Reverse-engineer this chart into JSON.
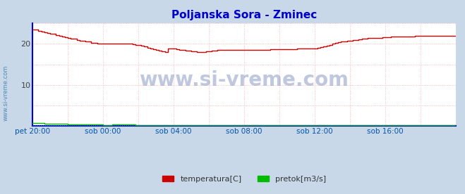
{
  "title": "Poljanska Sora - Zminec",
  "title_color": "#0000cc",
  "background_color": "#c8d8e8",
  "plot_background": "#ffffff",
  "xlim": [
    0,
    288
  ],
  "ylim": [
    0,
    25
  ],
  "yticks": [
    10,
    20
  ],
  "xtick_labels": [
    "pet 20:00",
    "sob 00:00",
    "sob 04:00",
    "sob 08:00",
    "sob 12:00",
    "sob 16:00"
  ],
  "xtick_positions": [
    0,
    48,
    96,
    144,
    192,
    240
  ],
  "grid_color": "#ffaaaa",
  "grid_color2": "#aaaacc",
  "watermark_text": "www.si-vreme.com",
  "watermark_color": "#1a3a8a",
  "ylabel_text": "www.si-vreme.com",
  "ylabel_color": "#3377aa",
  "legend_labels": [
    "temperatura[C]",
    "pretok[m3/s]"
  ],
  "legend_colors": [
    "#cc0000",
    "#00bb00"
  ],
  "temp_color": "#cc0000",
  "flow_color": "#00bb00",
  "border_color": "#0000dd",
  "temp_data_x": [
    0,
    2,
    4,
    6,
    8,
    10,
    12,
    14,
    16,
    18,
    20,
    22,
    24,
    26,
    28,
    30,
    32,
    34,
    36,
    38,
    40,
    42,
    44,
    46,
    48,
    50,
    52,
    54,
    56,
    58,
    60,
    62,
    64,
    66,
    68,
    70,
    72,
    74,
    76,
    78,
    80,
    82,
    84,
    86,
    88,
    90,
    92,
    94,
    96,
    98,
    100,
    102,
    104,
    106,
    108,
    110,
    112,
    114,
    116,
    118,
    120,
    122,
    124,
    126,
    128,
    130,
    132,
    134,
    136,
    138,
    140,
    142,
    144,
    146,
    148,
    150,
    152,
    154,
    156,
    158,
    160,
    162,
    164,
    166,
    168,
    170,
    172,
    174,
    176,
    178,
    180,
    182,
    184,
    186,
    188,
    190,
    192,
    194,
    196,
    198,
    200,
    202,
    204,
    206,
    208,
    210,
    212,
    214,
    216,
    218,
    220,
    222,
    224,
    226,
    228,
    230,
    232,
    234,
    236,
    238,
    240,
    242,
    244,
    246,
    248,
    250,
    252,
    254,
    256,
    258,
    260,
    262,
    264,
    266,
    268,
    270,
    272,
    274,
    276,
    278,
    280,
    282,
    284,
    286,
    288
  ],
  "temp_data_y": [
    23.5,
    23.4,
    23.2,
    23.0,
    22.8,
    22.7,
    22.5,
    22.4,
    22.2,
    22.0,
    21.8,
    21.6,
    21.5,
    21.3,
    21.2,
    21.0,
    20.8,
    20.7,
    20.6,
    20.5,
    20.3,
    20.2,
    20.1,
    20.0,
    20.0,
    20.0,
    20.0,
    20.1,
    20.1,
    20.0,
    20.0,
    20.0,
    20.0,
    20.0,
    19.9,
    19.8,
    19.7,
    19.5,
    19.3,
    19.1,
    18.9,
    18.7,
    18.6,
    18.4,
    18.2,
    18.0,
    18.8,
    18.9,
    18.9,
    18.7,
    18.6,
    18.5,
    18.4,
    18.3,
    18.2,
    18.1,
    18.0,
    18.0,
    18.0,
    18.1,
    18.2,
    18.3,
    18.4,
    18.5,
    18.5,
    18.5,
    18.5,
    18.5,
    18.5,
    18.5,
    18.6,
    18.6,
    18.6,
    18.6,
    18.6,
    18.6,
    18.6,
    18.6,
    18.6,
    18.6,
    18.6,
    18.7,
    18.7,
    18.7,
    18.7,
    18.7,
    18.7,
    18.7,
    18.7,
    18.7,
    18.8,
    18.8,
    18.8,
    18.8,
    18.8,
    18.8,
    18.8,
    19.0,
    19.2,
    19.4,
    19.6,
    19.8,
    20.0,
    20.2,
    20.4,
    20.5,
    20.6,
    20.7,
    20.8,
    20.9,
    21.0,
    21.1,
    21.2,
    21.3,
    21.4,
    21.4,
    21.5,
    21.5,
    21.5,
    21.6,
    21.6,
    21.6,
    21.7,
    21.7,
    21.7,
    21.7,
    21.8,
    21.8,
    21.8,
    21.8,
    21.9,
    21.9,
    21.9,
    21.9,
    22.0,
    22.0,
    22.0,
    22.0,
    22.0,
    22.0,
    22.0,
    22.0,
    22.0,
    22.0,
    22.0
  ],
  "flow_data_x": [
    0,
    2,
    4,
    6,
    8,
    10,
    12,
    14,
    16,
    18,
    20,
    22,
    24,
    26,
    28,
    30,
    32,
    34,
    36,
    38,
    40,
    42,
    44,
    46,
    48,
    50,
    52,
    54,
    56,
    58,
    60,
    62,
    64,
    66,
    68,
    70,
    72,
    74,
    76,
    78,
    80,
    82,
    84,
    86,
    88,
    90,
    92,
    94,
    96,
    98,
    100,
    102,
    104,
    106,
    108,
    110,
    112,
    114,
    116,
    118,
    120,
    122,
    124,
    126,
    128,
    130,
    132,
    134,
    136,
    138,
    140,
    142,
    144,
    146,
    148,
    150,
    152,
    154,
    156,
    158,
    160,
    162,
    164,
    166,
    168,
    170,
    172,
    174,
    176,
    178,
    180,
    182,
    184,
    186,
    188,
    190,
    192,
    194,
    196,
    198,
    200,
    202,
    204,
    206,
    208,
    210,
    212,
    214,
    216,
    218,
    220,
    222,
    224,
    226,
    228,
    230,
    232,
    234,
    236,
    238,
    240,
    242,
    244,
    246,
    248,
    250,
    252,
    254,
    256,
    258,
    260,
    262,
    264,
    266,
    268,
    270,
    272,
    274,
    276,
    278,
    280,
    282,
    284,
    286,
    288
  ],
  "flow_data_y": [
    0.8,
    0.76,
    0.72,
    0.68,
    0.65,
    0.62,
    0.6,
    0.58,
    0.56,
    0.54,
    0.52,
    0.5,
    0.48,
    0.46,
    0.44,
    0.42,
    0.4,
    0.39,
    0.38,
    0.37,
    0.36,
    0.35,
    0.34,
    0.33,
    0.32,
    0.32,
    0.32,
    0.33,
    0.35,
    0.36,
    0.37,
    0.36,
    0.35,
    0.34,
    0.33,
    0.32,
    0.31,
    0.3,
    0.29,
    0.28,
    0.27,
    0.26,
    0.25,
    0.24,
    0.23,
    0.22,
    0.22,
    0.22,
    0.22,
    0.22,
    0.22,
    0.22,
    0.22,
    0.22,
    0.22,
    0.22,
    0.22,
    0.22,
    0.22,
    0.22,
    0.22,
    0.22,
    0.22,
    0.22,
    0.22,
    0.22,
    0.22,
    0.22,
    0.22,
    0.22,
    0.22,
    0.22,
    0.22,
    0.22,
    0.22,
    0.22,
    0.22,
    0.22,
    0.22,
    0.22,
    0.22,
    0.22,
    0.22,
    0.22,
    0.22,
    0.22,
    0.22,
    0.22,
    0.22,
    0.22,
    0.22,
    0.22,
    0.22,
    0.22,
    0.22,
    0.22,
    0.22,
    0.22,
    0.22,
    0.22,
    0.22,
    0.22,
    0.22,
    0.22,
    0.22,
    0.22,
    0.22,
    0.22,
    0.22,
    0.22,
    0.22,
    0.22,
    0.22,
    0.22,
    0.22,
    0.22,
    0.22,
    0.22,
    0.22,
    0.22,
    0.22,
    0.22,
    0.22,
    0.22,
    0.22,
    0.22,
    0.22,
    0.22,
    0.22,
    0.22,
    0.22,
    0.22,
    0.22,
    0.22,
    0.22,
    0.22,
    0.22,
    0.22,
    0.22,
    0.22,
    0.22,
    0.22,
    0.22,
    0.22,
    0.22
  ],
  "flow_dotted_y": 0.22,
  "num_vgrid": 12,
  "num_hgrid_extra": [
    5,
    15
  ]
}
